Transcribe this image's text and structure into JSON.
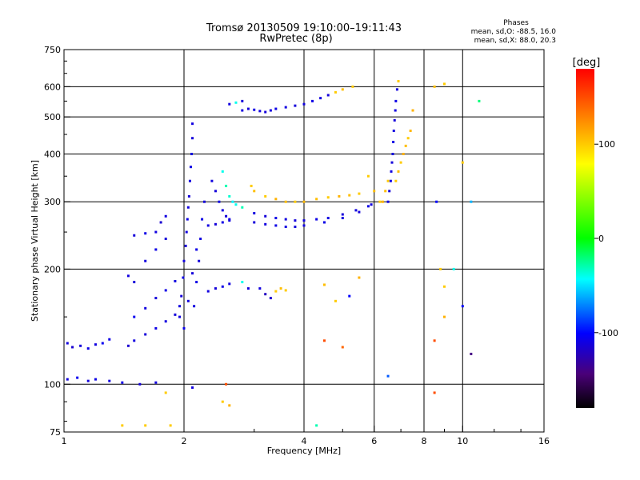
{
  "chart_data": {
    "type": "scatter",
    "title": "Tromsø 20130509 19:10:00–19:11:43",
    "subtitle": "RwPretec (8p)",
    "stats": {
      "heading": "Phases",
      "line_o": "mean, sd,O: -88.5, 16.0",
      "line_x": "mean, sd,X: 88.0, 20.3"
    },
    "xlabel": "Frequency [MHz]",
    "ylabel": "Stationary phase Virtual Height [km]",
    "x_scale": "log",
    "y_scale": "log",
    "xlim": [
      1,
      16
    ],
    "ylim": [
      75,
      750
    ],
    "x_ticks": [
      1,
      2,
      4,
      6,
      8,
      10,
      16
    ],
    "x_tick_labels": [
      "1",
      "2",
      "4",
      "6",
      "8",
      "10",
      "16"
    ],
    "x_grid": [
      2,
      4,
      6,
      8,
      10
    ],
    "y_ticks": [
      75,
      100,
      200,
      300,
      400,
      500,
      600,
      750
    ],
    "y_tick_labels": [
      "75",
      "100",
      "200",
      "300",
      "400",
      "500",
      "600",
      "750"
    ],
    "y_grid": [
      100,
      200,
      300,
      400,
      500,
      600
    ],
    "grid": true,
    "colorbar": {
      "label": "[deg]",
      "range": [
        -180,
        180
      ],
      "ticks": [
        100,
        0,
        -100
      ],
      "tick_labels": [
        "100",
        "0",
        "-100"
      ],
      "placement": "right"
    },
    "series": [
      {
        "points": [
          [
            1.02,
            128,
            -110
          ],
          [
            1.05,
            125,
            -115
          ],
          [
            1.1,
            126,
            -112
          ],
          [
            1.15,
            124,
            -108
          ],
          [
            1.2,
            127,
            -110
          ],
          [
            1.25,
            128,
            -105
          ],
          [
            1.3,
            131,
            -108
          ],
          [
            1.02,
            103,
            -110
          ],
          [
            1.08,
            104,
            -105
          ],
          [
            1.15,
            102,
            -112
          ],
          [
            1.2,
            103,
            -108
          ],
          [
            1.3,
            102,
            -110
          ],
          [
            1.4,
            101,
            -108
          ],
          [
            1.55,
            100,
            -112
          ],
          [
            1.7,
            101,
            -110
          ],
          [
            1.45,
            126,
            -115
          ],
          [
            1.5,
            130,
            -110
          ],
          [
            1.6,
            135,
            -112
          ],
          [
            1.7,
            140,
            -108
          ],
          [
            1.8,
            146,
            -110
          ],
          [
            1.9,
            152,
            -112
          ],
          [
            1.95,
            160,
            -110
          ],
          [
            1.5,
            150,
            -105
          ],
          [
            1.6,
            158,
            -110
          ],
          [
            1.7,
            168,
            -112
          ],
          [
            1.8,
            176,
            -108
          ],
          [
            1.9,
            186,
            -110
          ],
          [
            1.5,
            245,
            -112
          ],
          [
            1.6,
            248,
            -108
          ],
          [
            1.7,
            250,
            -110
          ],
          [
            1.75,
            265,
            -115
          ],
          [
            1.8,
            275,
            -110
          ],
          [
            1.45,
            192,
            -110
          ],
          [
            1.5,
            185,
            -112
          ],
          [
            1.6,
            210,
            -110
          ],
          [
            1.7,
            225,
            -108
          ],
          [
            1.8,
            240,
            -112
          ],
          [
            1.95,
            150,
            -110
          ],
          [
            1.97,
            170,
            -112
          ],
          [
            1.99,
            190,
            -108
          ],
          [
            2.0,
            210,
            -110
          ],
          [
            2.02,
            230,
            -112
          ],
          [
            2.03,
            250,
            -110
          ],
          [
            2.04,
            270,
            -108
          ],
          [
            2.05,
            290,
            -110
          ],
          [
            2.06,
            310,
            -112
          ],
          [
            2.07,
            340,
            -110
          ],
          [
            2.08,
            370,
            -108
          ],
          [
            2.09,
            400,
            -110
          ],
          [
            2.1,
            440,
            -112
          ],
          [
            2.1,
            480,
            -110
          ],
          [
            2.12,
            160,
            -110
          ],
          [
            2.15,
            185,
            -108
          ],
          [
            2.18,
            210,
            -112
          ],
          [
            2.2,
            240,
            -110
          ],
          [
            2.22,
            270,
            -108
          ],
          [
            2.25,
            300,
            -112
          ],
          [
            2.0,
            140,
            -105
          ],
          [
            2.05,
            165,
            -110
          ],
          [
            2.1,
            195,
            -112
          ],
          [
            2.15,
            225,
            -108
          ],
          [
            2.35,
            340,
            -110
          ],
          [
            2.4,
            320,
            -112
          ],
          [
            2.45,
            300,
            -108
          ],
          [
            2.5,
            285,
            -110
          ],
          [
            2.55,
            275,
            -112
          ],
          [
            2.6,
            270,
            -110
          ],
          [
            2.5,
            360,
            -40
          ],
          [
            2.55,
            330,
            -30
          ],
          [
            2.6,
            310,
            -35
          ],
          [
            2.65,
            300,
            -45
          ],
          [
            2.7,
            295,
            -40
          ],
          [
            2.8,
            290,
            -30
          ],
          [
            2.3,
            260,
            -110
          ],
          [
            2.4,
            262,
            -112
          ],
          [
            2.5,
            265,
            -108
          ],
          [
            2.6,
            268,
            -110
          ],
          [
            2.3,
            175,
            -110
          ],
          [
            2.4,
            178,
            -112
          ],
          [
            2.5,
            180,
            -108
          ],
          [
            2.6,
            183,
            -110
          ],
          [
            2.8,
            185,
            -40
          ],
          [
            2.9,
            178,
            -112
          ],
          [
            2.95,
            330,
            100
          ],
          [
            3.0,
            320,
            105
          ],
          [
            3.2,
            310,
            100
          ],
          [
            3.4,
            305,
            110
          ],
          [
            3.6,
            300,
            105
          ],
          [
            3.8,
            300,
            100
          ],
          [
            4.0,
            300,
            108
          ],
          [
            4.3,
            305,
            105
          ],
          [
            4.6,
            308,
            100
          ],
          [
            4.9,
            310,
            110
          ],
          [
            5.2,
            312,
            105
          ],
          [
            5.5,
            315,
            100
          ],
          [
            3.0,
            280,
            -110
          ],
          [
            3.2,
            275,
            -112
          ],
          [
            3.4,
            272,
            -108
          ],
          [
            3.6,
            270,
            -110
          ],
          [
            3.8,
            268,
            -112
          ],
          [
            4.0,
            268,
            -110
          ],
          [
            4.3,
            270,
            -108
          ],
          [
            4.6,
            272,
            -110
          ],
          [
            5.0,
            278,
            -112
          ],
          [
            5.4,
            285,
            -110
          ],
          [
            5.8,
            292,
            -108
          ],
          [
            3.0,
            265,
            -112
          ],
          [
            3.2,
            262,
            -110
          ],
          [
            3.4,
            260,
            -108
          ],
          [
            3.6,
            258,
            -110
          ],
          [
            3.8,
            258,
            -112
          ],
          [
            4.0,
            260,
            -110
          ],
          [
            4.5,
            265,
            -108
          ],
          [
            5.0,
            272,
            -110
          ],
          [
            5.5,
            282,
            -112
          ],
          [
            5.9,
            295,
            -110
          ],
          [
            3.1,
            178,
            -110
          ],
          [
            3.2,
            172,
            -120
          ],
          [
            3.3,
            168,
            -115
          ],
          [
            3.4,
            175,
            100
          ],
          [
            3.5,
            178,
            105
          ],
          [
            3.6,
            176,
            100
          ],
          [
            2.8,
            520,
            -110
          ],
          [
            2.9,
            525,
            -112
          ],
          [
            3.0,
            522,
            -108
          ],
          [
            3.1,
            518,
            -110
          ],
          [
            3.2,
            515,
            -112
          ],
          [
            3.3,
            520,
            -110
          ],
          [
            3.4,
            525,
            -108
          ],
          [
            3.6,
            530,
            -110
          ],
          [
            3.8,
            535,
            -112
          ],
          [
            4.0,
            540,
            -110
          ],
          [
            4.2,
            550,
            -108
          ],
          [
            4.4,
            560,
            -110
          ],
          [
            4.6,
            570,
            -112
          ],
          [
            4.8,
            580,
            100
          ],
          [
            5.0,
            590,
            105
          ],
          [
            5.3,
            600,
            100
          ],
          [
            2.6,
            540,
            -110
          ],
          [
            2.7,
            545,
            -40
          ],
          [
            2.8,
            550,
            -112
          ],
          [
            6.5,
            300,
            -110
          ],
          [
            6.55,
            320,
            -112
          ],
          [
            6.6,
            340,
            -108
          ],
          [
            6.62,
            360,
            -110
          ],
          [
            6.65,
            380,
            -112
          ],
          [
            6.68,
            400,
            -110
          ],
          [
            6.7,
            430,
            -108
          ],
          [
            6.72,
            460,
            -110
          ],
          [
            6.75,
            490,
            -112
          ],
          [
            6.78,
            520,
            -110
          ],
          [
            6.8,
            550,
            -108
          ],
          [
            6.85,
            590,
            -110
          ],
          [
            6.8,
            340,
            100
          ],
          [
            6.9,
            360,
            105
          ],
          [
            7.0,
            380,
            100
          ],
          [
            7.1,
            400,
            110
          ],
          [
            7.2,
            420,
            105
          ],
          [
            7.3,
            440,
            100
          ],
          [
            7.4,
            460,
            108
          ],
          [
            6.3,
            300,
            110
          ],
          [
            6.4,
            320,
            105
          ],
          [
            6.5,
            340,
            100
          ],
          [
            6.9,
            620,
            100
          ],
          [
            7.5,
            520,
            110
          ],
          [
            5.8,
            350,
            100
          ],
          [
            6.0,
            320,
            105
          ],
          [
            6.2,
            300,
            100
          ],
          [
            8.5,
            600,
            105
          ],
          [
            9.0,
            610,
            100
          ],
          [
            10.0,
            380,
            100
          ],
          [
            10.5,
            300,
            -60
          ],
          [
            11.0,
            550,
            -20
          ],
          [
            10.5,
            120,
            -140
          ],
          [
            8.6,
            300,
            -100
          ],
          [
            8.8,
            200,
            100
          ],
          [
            9.0,
            180,
            100
          ],
          [
            9.5,
            200,
            -40
          ],
          [
            10.0,
            160,
            -100
          ],
          [
            9.0,
            150,
            110
          ],
          [
            8.5,
            130,
            150
          ],
          [
            8.5,
            95,
            150
          ],
          [
            4.5,
            130,
            150
          ],
          [
            5.0,
            125,
            140
          ],
          [
            6.5,
            105,
            -80
          ],
          [
            4.3,
            78,
            -30
          ],
          [
            2.55,
            100,
            150
          ],
          [
            2.6,
            88,
            110
          ],
          [
            2.1,
            98,
            -110
          ],
          [
            5.5,
            190,
            110
          ],
          [
            4.5,
            182,
            105
          ],
          [
            4.8,
            165,
            100
          ],
          [
            5.2,
            170,
            -100
          ],
          [
            1.4,
            78,
            100
          ],
          [
            1.6,
            78,
            100
          ],
          [
            1.8,
            95,
            100
          ],
          [
            1.85,
            78,
            100
          ],
          [
            2.5,
            90,
            100
          ]
        ]
      }
    ]
  }
}
